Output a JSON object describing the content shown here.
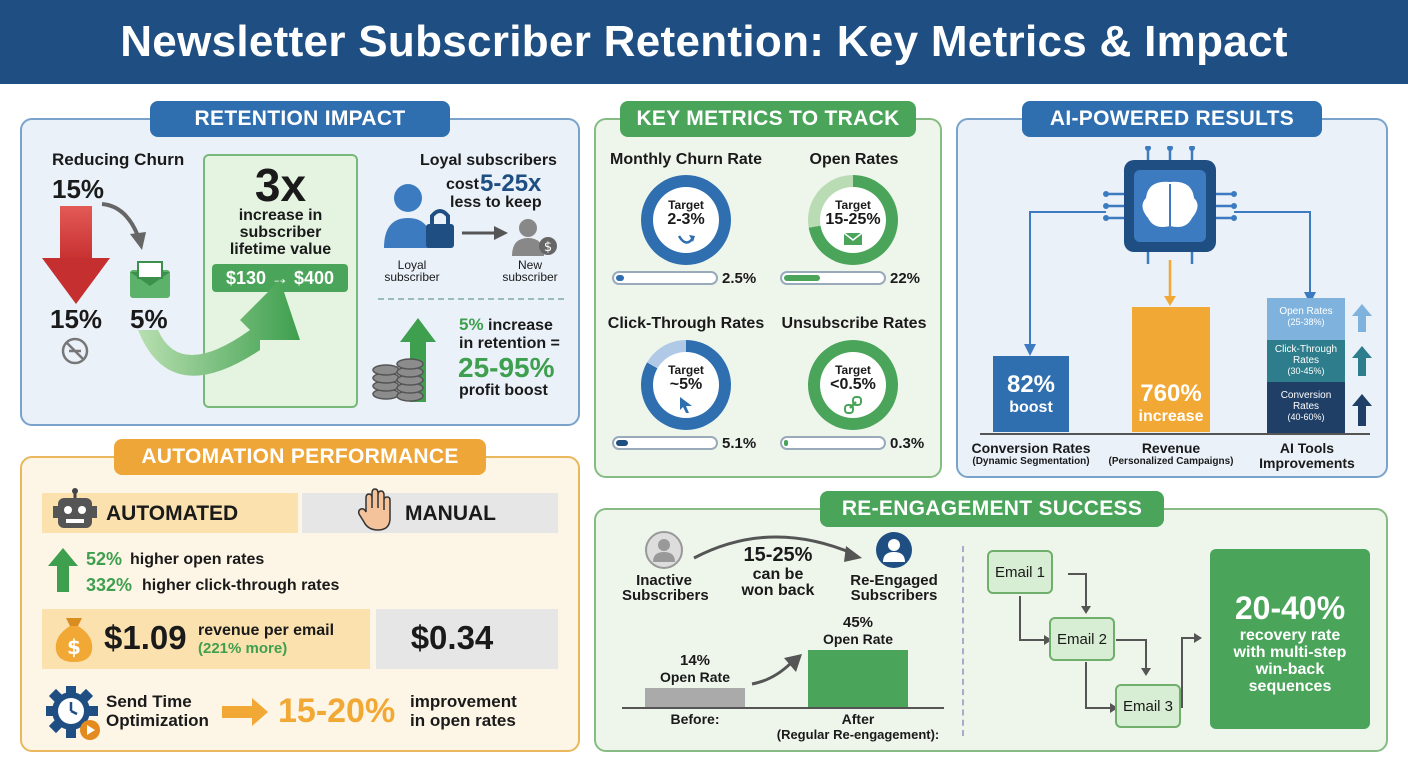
{
  "title": "Newsletter Subscriber Retention: Key Metrics & Impact",
  "retention": {
    "heading": "RETENTION IMPACT",
    "reducing_label": "Reducing Churn",
    "churn_top": "15%",
    "churn_bottom_left": "15%",
    "churn_bottom_right": "5%",
    "multiplier": "3x",
    "multiplier_desc_1": "increase in",
    "multiplier_desc_2": "subscriber",
    "multiplier_desc_3": "lifetime value",
    "value_change": "$130 → $400",
    "loyal_heading": "Loyal subscribers",
    "cost_prefix": "cost",
    "cost_value": "5-25x",
    "cost_suffix": "less to keep",
    "loyal_label_1": "Loyal",
    "loyal_label_2": "subscriber",
    "new_label_1": "New",
    "new_label_2": "subscriber",
    "retention_pct": "5%",
    "retention_line_1": "increase",
    "retention_line_2": "in retention =",
    "profit_range": "25-95%",
    "profit_label": "profit boost"
  },
  "key_metrics": {
    "heading": "KEY METRICS TO TRACK",
    "items": [
      {
        "title": "Monthly Churn Rate",
        "target_label": "Target",
        "target": "2-3%",
        "actual": "2.5%",
        "fill": 0.25,
        "color": "#2f6fb0"
      },
      {
        "title": "Open Rates",
        "target_label": "Target",
        "target": "15-25%",
        "actual": "22%",
        "fill": 0.22,
        "color": "#4aa55a"
      },
      {
        "title": "Click-Through Rates",
        "target_label": "Target",
        "target": "~5%",
        "actual": "5.1%",
        "fill": 0.1,
        "color": "#2f6fb0"
      },
      {
        "title": "Unsubscribe Rates",
        "target_label": "Target",
        "target": "<0.5%",
        "actual": "0.3%",
        "fill": 0.03,
        "color": "#4aa55a"
      }
    ]
  },
  "ai": {
    "heading": "AI-POWERED RESULTS",
    "conversion_value": "82%",
    "conversion_sub": "boost",
    "conversion_label": "Conversion Rates",
    "conversion_note": "(Dynamic Segmentation)",
    "revenue_value": "760%",
    "revenue_sub": "increase",
    "revenue_label": "Revenue",
    "revenue_note": "(Personalized Campaigns)",
    "tools_label_1": "AI Tools",
    "tools_label_2": "Improvements",
    "tools": [
      {
        "name": "Open Rates",
        "range": "(25-38%)"
      },
      {
        "name": "Click-Through Rates",
        "range": "(30-45%)"
      },
      {
        "name": "Conversion Rates",
        "range": "(40-60%)"
      }
    ],
    "colors": {
      "blue": "#2f6fb0",
      "orange": "#f2a834"
    }
  },
  "automation": {
    "heading": "AUTOMATION PERFORMANCE",
    "automated_label": "AUTOMATED",
    "manual_label": "MANUAL",
    "open_pct": "52%",
    "open_text": "higher open rates",
    "ctr_pct": "332%",
    "ctr_text": "higher click-through rates",
    "revenue_auto": "$1.09",
    "revenue_label": "revenue per email",
    "revenue_more": "(221% more)",
    "revenue_manual": "$0.34",
    "sto_label_1": "Send Time",
    "sto_label_2": "Optimization",
    "sto_value": "15-20%",
    "sto_text_1": "improvement",
    "sto_text_2": "in open rates"
  },
  "reengagement": {
    "heading": "RE-ENGAGEMENT SUCCESS",
    "inactive_1": "Inactive",
    "inactive_2": "Subscribers",
    "won_range": "15-25%",
    "won_1": "can be",
    "won_2": "won back",
    "reengaged_1": "Re-Engaged",
    "reengaged_2": "Subscribers",
    "before_pct": "14%",
    "before_rate": "Open Rate",
    "before_label": "Before:",
    "after_pct": "45%",
    "after_rate": "Open Rate",
    "after_label_1": "After",
    "after_label_2": "(Regular Re-engagement):",
    "before_value": 14,
    "after_value": 45,
    "emails": [
      "Email 1",
      "Email 2",
      "Email 3"
    ],
    "recovery_value": "20-40%",
    "recovery_1": "recovery rate",
    "recovery_2": "with multi-step",
    "recovery_3": "win-back",
    "recovery_4": "sequences"
  }
}
